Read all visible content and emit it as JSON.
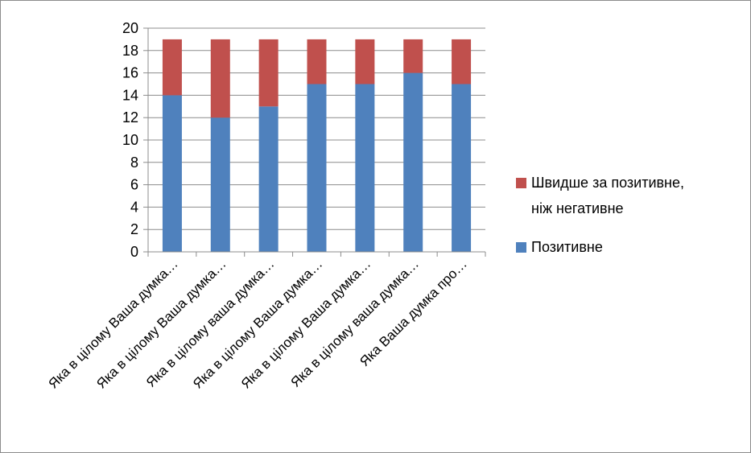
{
  "chart_data": {
    "type": "bar",
    "stacked": true,
    "categories": [
      "Яка в цілому Ваша думка…",
      "Яка в цілому Ваша думка…",
      "Яка в цілому ваша думка…",
      "Яка в цілому Ваша думка…",
      "Яка в цілому Ваша думка…",
      "Яка в цілому ваша думка…",
      "Яка Ваша думка про…"
    ],
    "series": [
      {
        "name": "Позитивне",
        "color": "#4f81bd",
        "values": [
          14,
          12,
          13,
          15,
          15,
          16,
          15
        ]
      },
      {
        "name": "Швидше за позитивне, ніж негативне",
        "color": "#c0504d",
        "values": [
          5,
          7,
          6,
          4,
          4,
          3,
          4
        ]
      }
    ],
    "legend": {
      "placement": "right",
      "entries": [
        {
          "series": 1,
          "lines": [
            "Швидше за позитивне,",
            "ніж негативне"
          ]
        },
        {
          "series": 0,
          "lines": [
            "Позитивне"
          ]
        }
      ]
    },
    "y_ticks": [
      "0",
      "2",
      "4",
      "6",
      "8",
      "10",
      "12",
      "14",
      "16",
      "18",
      "20"
    ],
    "ylim": [
      0,
      20
    ],
    "grid": true
  }
}
